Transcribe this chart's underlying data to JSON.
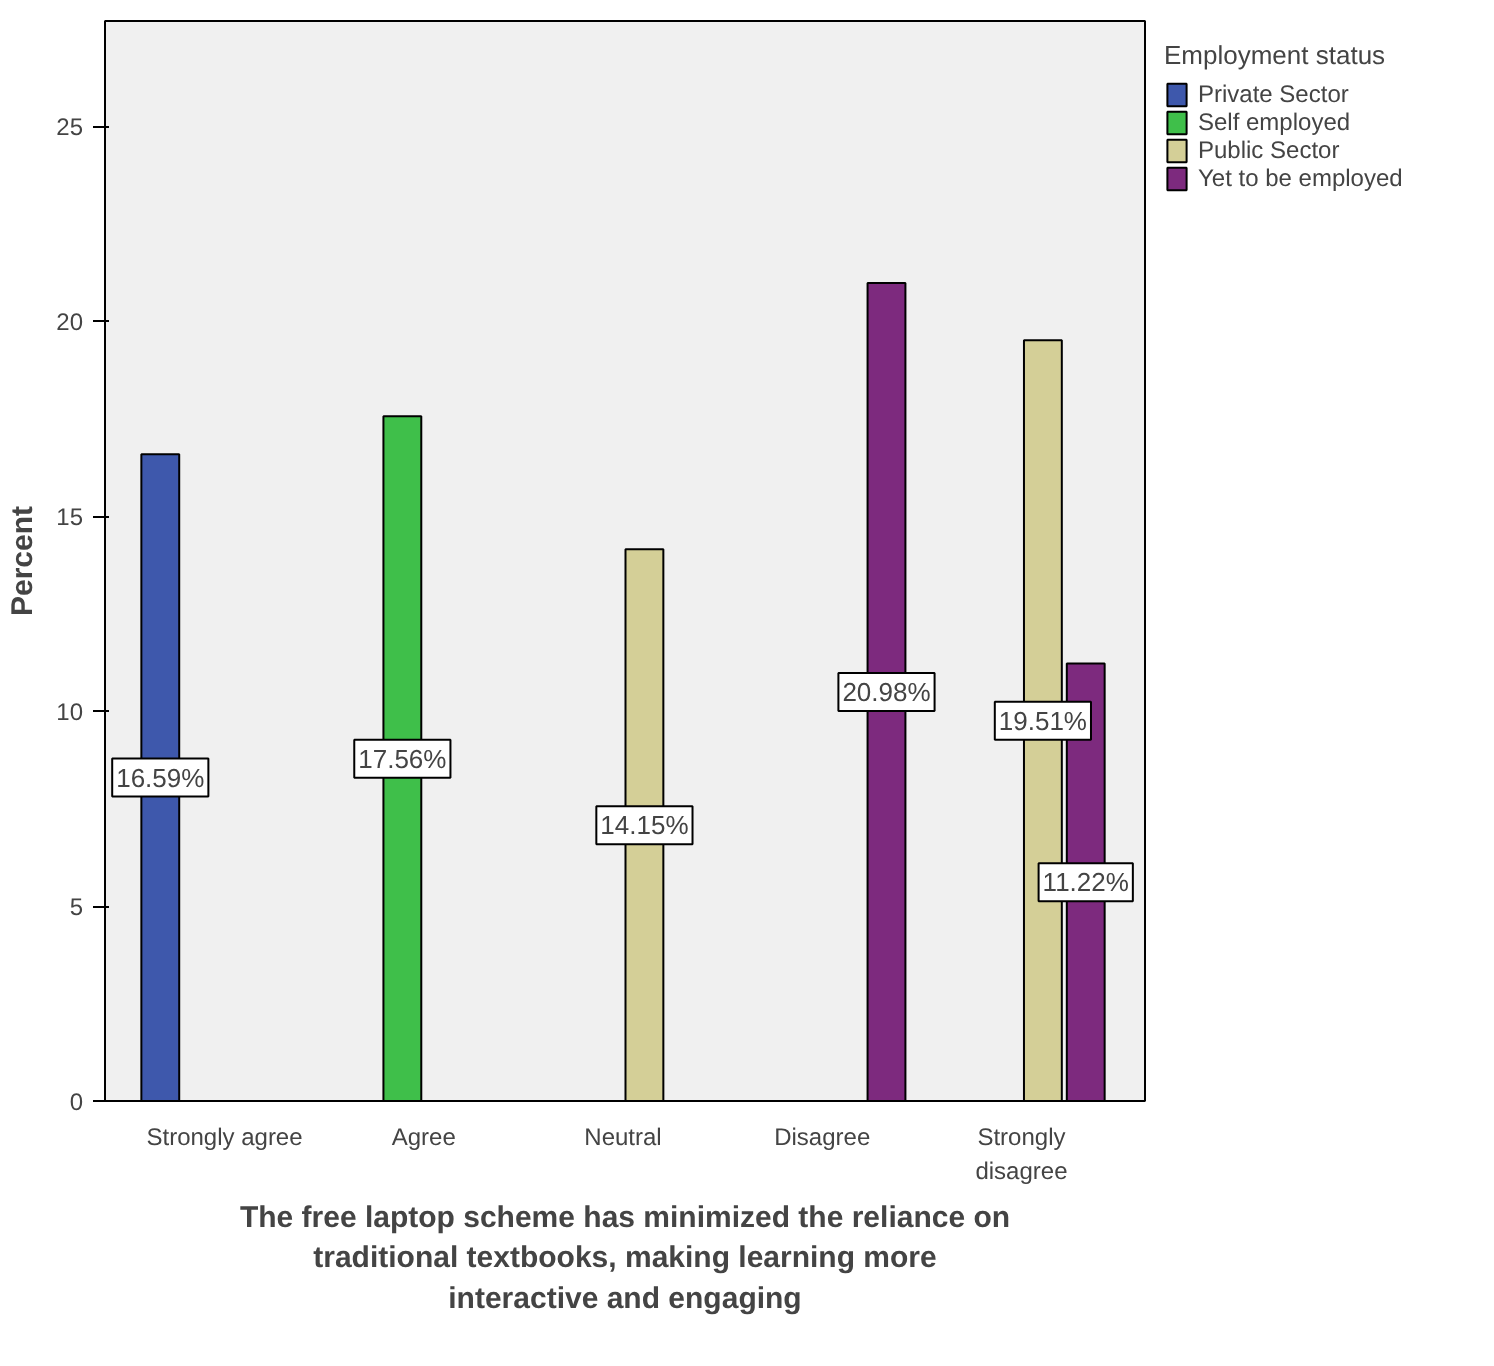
{
  "chart_data": {
    "type": "bar",
    "xlabel": "The free laptop scheme has minimized the reliance on traditional textbooks, making learning more interactive and engaging",
    "ylabel": "Percent",
    "legend_title": "Employment status",
    "legend": "right",
    "grid": false,
    "categories": [
      "Strongly agree",
      "Agree",
      "Neutral",
      "Disagree",
      "Strongly disagree"
    ],
    "ylim": [
      0,
      27.7
    ],
    "yticks": [
      0,
      5,
      10,
      15,
      20,
      25
    ],
    "series": [
      {
        "name": "Private Sector",
        "color": "#3e58ac",
        "values": [
          16.59,
          null,
          null,
          null,
          null
        ],
        "value_labels": [
          "16.59%",
          null,
          null,
          null,
          null
        ]
      },
      {
        "name": "Self employed",
        "color": "#3fbf4a",
        "values": [
          null,
          17.56,
          null,
          null,
          null
        ],
        "value_labels": [
          null,
          "17.56%",
          null,
          null,
          null
        ]
      },
      {
        "name": "Public Sector",
        "color": "#d4cf97",
        "values": [
          null,
          null,
          14.15,
          null,
          19.51
        ],
        "value_labels": [
          null,
          null,
          "14.15%",
          null,
          "19.51%"
        ]
      },
      {
        "name": "Yet to be employed",
        "color": "#7d2a7e",
        "values": [
          null,
          null,
          null,
          20.98,
          11.22
        ],
        "value_labels": [
          null,
          null,
          null,
          "20.98%",
          "11.22%"
        ]
      }
    ]
  }
}
